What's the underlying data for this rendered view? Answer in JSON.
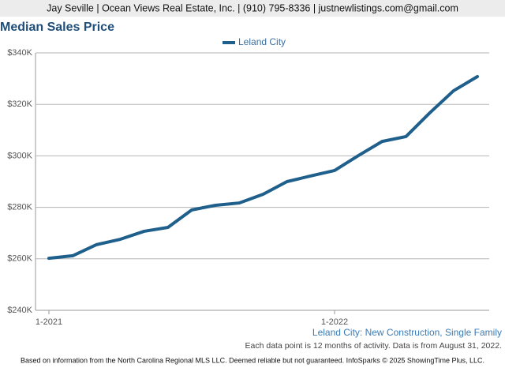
{
  "header": {
    "text": "Jay Seville | Ocean Views Real Estate, Inc. | (910) 795-8336 | justnewlistings.com@gmail.com"
  },
  "chart_data": {
    "type": "line",
    "title": "Median Sales Price",
    "categories": [
      "1-2021",
      null,
      null,
      null,
      null,
      null,
      null,
      null,
      null,
      null,
      null,
      null,
      "1-2022",
      null,
      null,
      null,
      null,
      null,
      null
    ],
    "series": [
      {
        "name": "Leland City",
        "color": "#1f5f8b",
        "values": [
          260200,
          261200,
          265500,
          267600,
          270700,
          272200,
          279000,
          280800,
          281700,
          285100,
          290000,
          292200,
          294300,
          300100,
          305600,
          307500,
          316700,
          325300,
          330800
        ]
      }
    ],
    "ylim": [
      240000,
      340000
    ],
    "yticks": [
      {
        "value": 240000,
        "label": "$240K"
      },
      {
        "value": 260000,
        "label": "$260K"
      },
      {
        "value": 280000,
        "label": "$280K"
      },
      {
        "value": 300000,
        "label": "$300K"
      },
      {
        "value": 320000,
        "label": "$320K"
      },
      {
        "value": 340000,
        "label": "$340K"
      }
    ],
    "grid": true,
    "legend": "top"
  },
  "notes": {
    "subject": "Leland City: New Construction, Single Family",
    "activity": "Each data point is 12 months of activity. Data is from August 31, 2022.",
    "disclaimer": "Based on information from the North Carolina Regional MLS LLC. Deemed reliable but not guaranteed. InfoSparks © 2025 ShowingTime Plus, LLC."
  }
}
